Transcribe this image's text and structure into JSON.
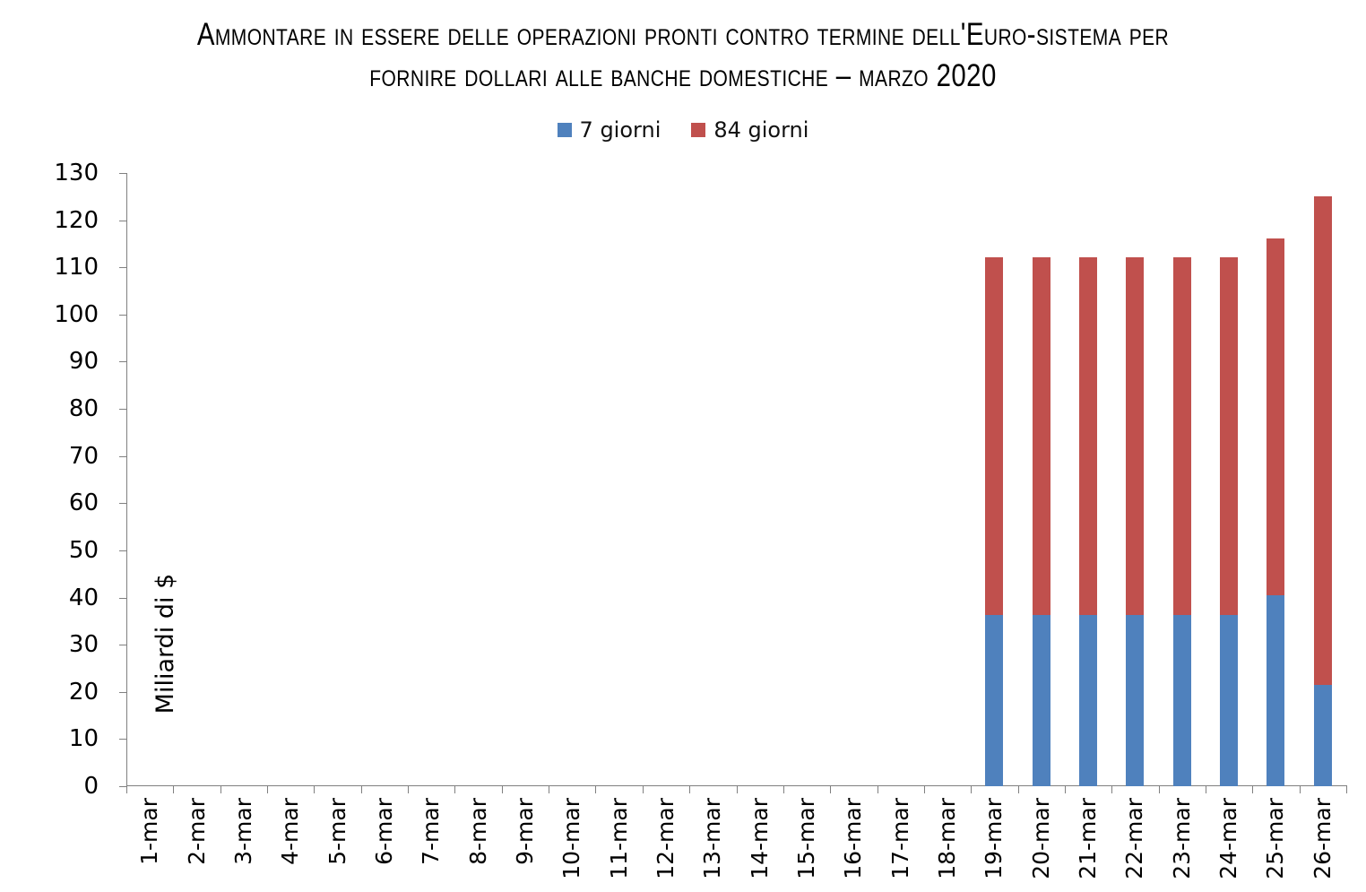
{
  "chart_data": {
    "type": "bar",
    "stacked": true,
    "title": "Ammontare in essere delle operazioni pronti contro termine dell'Euro-sistema per fornire dollari alle banche domestiche – marzo 2020",
    "title_line1": "Ammontare in essere delle operazioni pronti contro termine dell'Euro-sistema per",
    "title_line2": "fornire dollari alle banche domestiche – marzo 2020",
    "xlabel": "",
    "ylabel": "Miliardi di $",
    "ylim": [
      0,
      130
    ],
    "ytick_step": 10,
    "grid": false,
    "legend_position": "top-center",
    "categories": [
      "1-mar",
      "2-mar",
      "3-mar",
      "4-mar",
      "5-mar",
      "6-mar",
      "7-mar",
      "8-mar",
      "9-mar",
      "10-mar",
      "11-mar",
      "12-mar",
      "13-mar",
      "14-mar",
      "15-mar",
      "16-mar",
      "17-mar",
      "18-mar",
      "19-mar",
      "20-mar",
      "21-mar",
      "22-mar",
      "23-mar",
      "24-mar",
      "25-mar",
      "26-mar"
    ],
    "series": [
      {
        "name": "7 giorni",
        "color": "#4F81BD",
        "values": [
          0,
          0,
          0,
          0,
          0,
          0,
          0,
          0,
          0,
          0,
          0,
          0,
          0,
          0,
          0,
          0,
          0,
          0,
          36.3,
          36.3,
          36.3,
          36.3,
          36.3,
          36.3,
          40.4,
          21.5
        ]
      },
      {
        "name": "84 giorni",
        "color": "#C0504D",
        "values": [
          0,
          0,
          0,
          0,
          0,
          0,
          0,
          0,
          0,
          0,
          0,
          0,
          0,
          0,
          0,
          0,
          0,
          0,
          75.8,
          75.8,
          75.8,
          75.8,
          75.8,
          75.8,
          75.8,
          103.6
        ]
      }
    ]
  },
  "colors": {
    "axis": "#808080",
    "text": "#000000",
    "background": "#FFFFFF"
  }
}
